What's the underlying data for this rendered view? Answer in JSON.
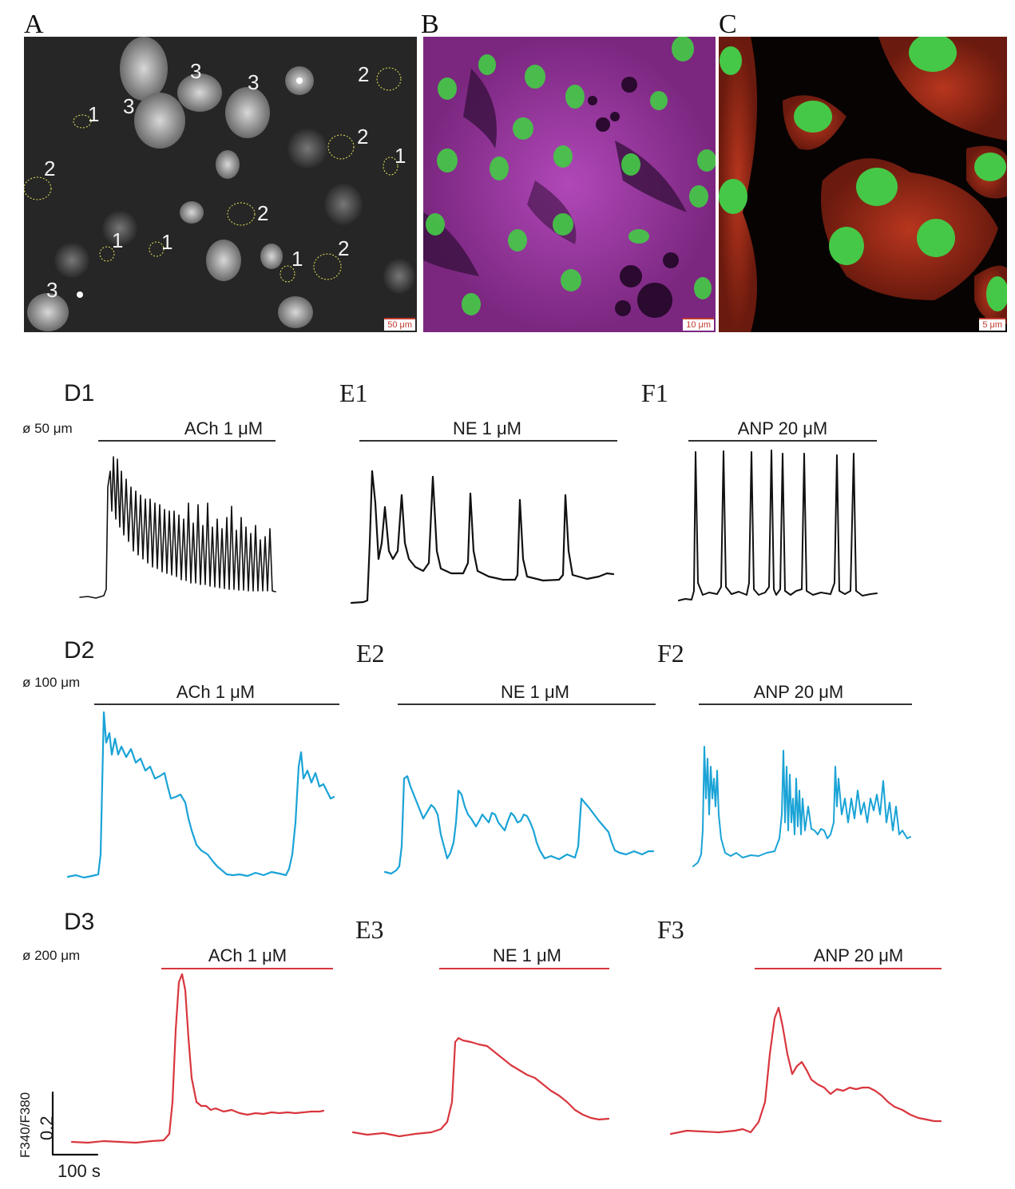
{
  "panels": {
    "a": {
      "letter": "A",
      "scale": "50 μm"
    },
    "b": {
      "letter": "B",
      "scale": "10 μm"
    },
    "c": {
      "letter": "C",
      "scale": "5 μm"
    }
  },
  "cell_labels": [
    "1",
    "1",
    "1",
    "1",
    "1",
    "2",
    "2",
    "2",
    "2",
    "2",
    "2",
    "3",
    "3",
    "3",
    "3"
  ],
  "rows": [
    {
      "diameter": "ø 50 μm",
      "color": "#111111",
      "labels": [
        "D1",
        "E1",
        "F1"
      ],
      "drugs": [
        "ACh 1 μM",
        "NE 1 μM",
        "ANP 20 μM"
      ]
    },
    {
      "diameter": "ø 100 μm",
      "color": "#1aa3d6",
      "labels": [
        "D2",
        "E2",
        "F2"
      ],
      "drugs": [
        "ACh 1 μM",
        "NE 1 μM",
        "ANP 20 μM"
      ]
    },
    {
      "diameter": "ø 200 μm",
      "color": "#d9363e",
      "labels": [
        "D3",
        "E3",
        "F3"
      ],
      "drugs": [
        "ACh 1 μM",
        "NE 1 μM",
        "ANP 20 μM"
      ]
    }
  ],
  "scalebar": {
    "y_label": "F340/F380",
    "y_value": "0.2",
    "x_value": "100 s"
  }
}
